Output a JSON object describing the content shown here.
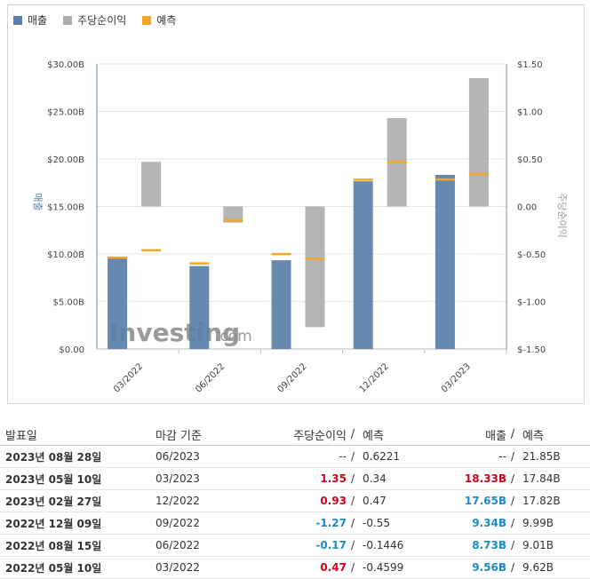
{
  "legend": [
    {
      "label": "매출",
      "color": "#5b7fa8"
    },
    {
      "label": "주당순이익",
      "color": "#adadad"
    },
    {
      "label": "예측",
      "color": "#f5a623"
    }
  ],
  "watermark": {
    "brand": "Investing",
    "suffix": ".com"
  },
  "chart_data": {
    "type": "bar",
    "categories": [
      "03/2022",
      "06/2022",
      "09/2022",
      "12/2022",
      "03/2023"
    ],
    "series": [
      {
        "name": "매출",
        "axis": "left",
        "values": [
          9.56,
          8.73,
          9.34,
          17.65,
          18.33
        ],
        "forecast": [
          9.62,
          9.01,
          9.99,
          17.82,
          17.84
        ],
        "color": "#5b7fa8"
      },
      {
        "name": "주당순이익",
        "axis": "right",
        "values": [
          0.47,
          -0.17,
          -1.27,
          0.93,
          1.35
        ],
        "forecast": [
          -0.4599,
          -0.1446,
          -0.55,
          0.47,
          0.34
        ],
        "color": "#adadad"
      }
    ],
    "forecast_color": "#f5a623",
    "left_axis": {
      "label": "매출",
      "ylim": [
        0,
        30
      ],
      "ticks": [
        "$0.00",
        "$5.00B",
        "$10.00B",
        "$15.00B",
        "$20.00B",
        "$25.00B",
        "$30.00B"
      ]
    },
    "right_axis": {
      "label": "주당순이익",
      "ylim": [
        -1.5,
        1.5
      ],
      "ticks": [
        "$-1.50",
        "$-1.00",
        "$-0.50",
        "0.00",
        "$0.50",
        "$1.00",
        "$1.50"
      ]
    },
    "grid": true
  },
  "table": {
    "headers": {
      "date": "발표일",
      "period": "마감 기준",
      "eps": "주당순이익",
      "sep": "/",
      "eps_forecast": "예측",
      "revenue": "매출",
      "revenue_forecast": "예측"
    },
    "rows": [
      {
        "date": "2023년 08월 28일",
        "period": "06/2023",
        "eps": "--",
        "eps_forecast": "0.6221",
        "revenue": "--",
        "revenue_forecast": "21.85B",
        "eps_class": "plain",
        "rev_class": "plain"
      },
      {
        "date": "2023년 05월 10일",
        "period": "03/2023",
        "eps": "1.35",
        "eps_forecast": "0.34",
        "revenue": "18.33B",
        "revenue_forecast": "17.84B",
        "eps_class": "pos",
        "rev_class": "beat"
      },
      {
        "date": "2023년 02월 27일",
        "period": "12/2022",
        "eps": "0.93",
        "eps_forecast": "0.47",
        "revenue": "17.65B",
        "revenue_forecast": "17.82B",
        "eps_class": "pos",
        "rev_class": "miss"
      },
      {
        "date": "2022년 12월 09일",
        "period": "09/2022",
        "eps": "-1.27",
        "eps_forecast": "-0.55",
        "revenue": "9.34B",
        "revenue_forecast": "9.99B",
        "eps_class": "neg",
        "rev_class": "miss"
      },
      {
        "date": "2022년 08월 15일",
        "period": "06/2022",
        "eps": "-0.17",
        "eps_forecast": "-0.1446",
        "revenue": "8.73B",
        "revenue_forecast": "9.01B",
        "eps_class": "neg",
        "rev_class": "miss"
      },
      {
        "date": "2022년 05월 10일",
        "period": "03/2022",
        "eps": "0.47",
        "eps_forecast": "-0.4599",
        "revenue": "9.56B",
        "revenue_forecast": "9.62B",
        "eps_class": "pos",
        "rev_class": "miss"
      }
    ]
  }
}
